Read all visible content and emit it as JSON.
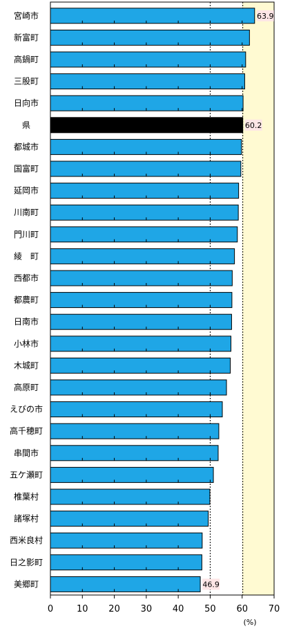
{
  "chart_data": {
    "type": "bar",
    "orientation": "horizontal",
    "categories": [
      "宮崎市",
      "新富町",
      "高鍋町",
      "三股町",
      "日向市",
      "県",
      "都城市",
      "国富町",
      "延岡市",
      "川南町",
      "門川町",
      "綾　町",
      "西都市",
      "都農町",
      "日南市",
      "小林市",
      "木城町",
      "高原町",
      "えびの市",
      "高千穂町",
      "串間市",
      "五ケ瀬町",
      "椎葉村",
      "諸塚村",
      "西米良村",
      "日之影町",
      "美郷町"
    ],
    "values": [
      63.9,
      62.3,
      61.1,
      60.8,
      60.3,
      60.2,
      59.8,
      59.6,
      58.9,
      58.8,
      58.5,
      57.6,
      56.9,
      56.8,
      56.7,
      56.5,
      56.3,
      55.1,
      53.8,
      52.7,
      52.5,
      51.0,
      49.9,
      49.4,
      47.5,
      47.4,
      46.9
    ],
    "highlight_category": "県",
    "xlim": [
      0,
      70
    ],
    "xticks": [
      "0",
      "10",
      "20",
      "30",
      "40",
      "50",
      "60",
      "70"
    ],
    "xlabel": "(%)",
    "data_labels": [
      {
        "category": "宮崎市",
        "text": "63.9"
      },
      {
        "category": "県",
        "text": "60.2"
      },
      {
        "category": "美郷町",
        "text": "46.9"
      }
    ],
    "reference_lines": [
      50,
      60.2
    ],
    "background_band": [
      60,
      70
    ],
    "colors": {
      "bar": "#1fa6e6",
      "highlight_bar": "#000000",
      "band": "#fffad2",
      "label_bg": "#fde6e6",
      "bar_border": "#000000"
    }
  }
}
